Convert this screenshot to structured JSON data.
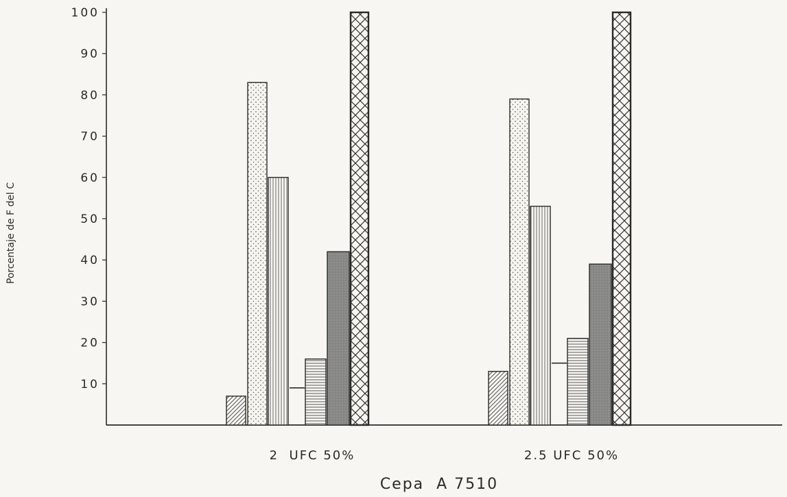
{
  "chart_data": {
    "type": "bar",
    "title": "",
    "xlabel": "Cepa  A 7510",
    "ylabel": "Porcentaje de F del C",
    "ylim": [
      0,
      100
    ],
    "yticks": [
      10,
      20,
      30,
      40,
      50,
      60,
      70,
      80,
      90,
      100
    ],
    "ytick_labels": [
      "10",
      "20",
      "30",
      "40",
      "50",
      "60",
      "70",
      "80",
      "90",
      "100"
    ],
    "categories": [
      "2  UFC 50%",
      "2.5 UFC 50%"
    ],
    "grid": false,
    "legend": "none",
    "series": [
      {
        "pattern": "diagonal-hatch",
        "values": [
          7,
          13
        ]
      },
      {
        "pattern": "dots",
        "values": [
          83,
          79
        ]
      },
      {
        "pattern": "vertical-lines",
        "values": [
          60,
          53
        ]
      },
      {
        "pattern": "flat-line",
        "values": [
          9,
          15
        ]
      },
      {
        "pattern": "horizontal-lines",
        "values": [
          16,
          21
        ]
      },
      {
        "pattern": "dark-gray",
        "values": [
          42,
          39
        ]
      },
      {
        "pattern": "cross-hatch",
        "values": [
          100,
          100
        ]
      }
    ],
    "colors": {
      "ink": "#2a2a2a",
      "paper": "#f7f6f2",
      "dark_fill": "#8a8a88"
    }
  }
}
